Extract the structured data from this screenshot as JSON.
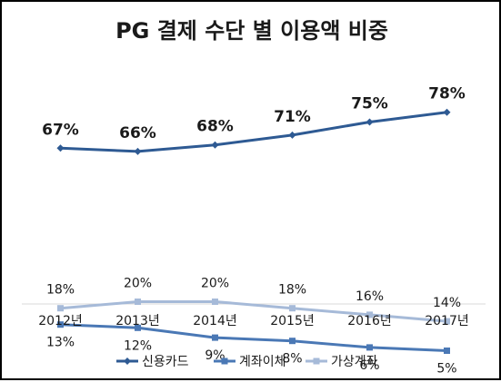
{
  "chart_data": {
    "type": "line",
    "title": "PG 결제 수단 별 이용액 비중",
    "categories": [
      "2012년",
      "2013년",
      "2014년",
      "2015년",
      "2016년",
      "2017년"
    ],
    "series": [
      {
        "name": "신용카드",
        "values": [
          67,
          66,
          68,
          71,
          75,
          78
        ],
        "labels": [
          "67%",
          "66%",
          "68%",
          "71%",
          "75%",
          "78%"
        ],
        "color": "#2e5a93",
        "marker": "diamond"
      },
      {
        "name": "계좌이체",
        "values": [
          13,
          12,
          9,
          8,
          6,
          5
        ],
        "labels": [
          "13%",
          "12%",
          "9%",
          "8%",
          "6%",
          "5%"
        ],
        "color": "#4a78b5",
        "marker": "square"
      },
      {
        "name": "가상계좌",
        "values": [
          18,
          20,
          20,
          18,
          16,
          14
        ],
        "labels": [
          "18%",
          "20%",
          "20%",
          "18%",
          "16%",
          "14%"
        ],
        "color": "#a6bad8",
        "marker": "square"
      }
    ],
    "ylim": [
      0,
      100
    ],
    "grid": false,
    "legend_position": "bottom"
  }
}
